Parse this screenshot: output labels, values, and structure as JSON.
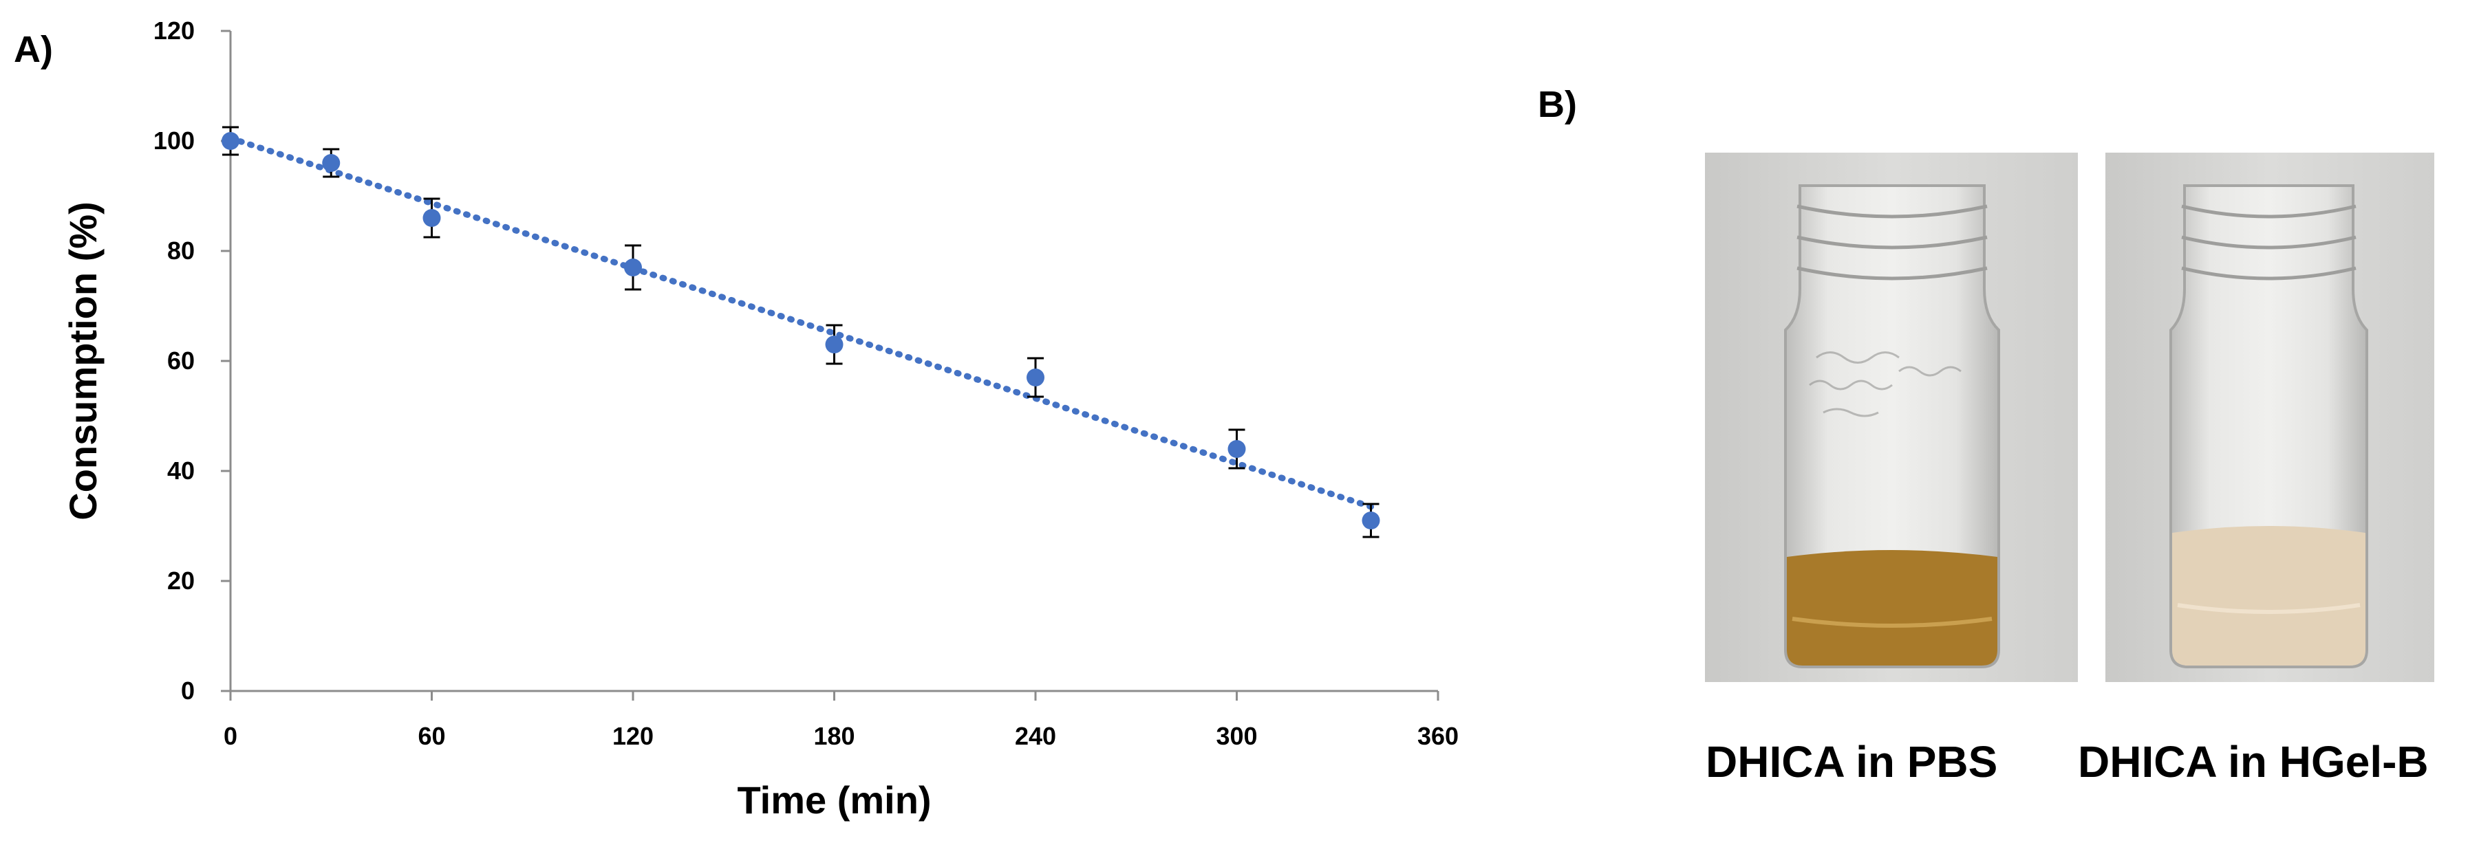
{
  "panel_a_label": "A)",
  "panel_b_label": "B)",
  "chart_data": {
    "type": "scatter",
    "title": "",
    "xlabel": "Time (min)",
    "ylabel": "Consumption (%)",
    "xlim": [
      0,
      360
    ],
    "ylim": [
      0,
      120
    ],
    "xticks": [
      0,
      60,
      120,
      180,
      240,
      300,
      360
    ],
    "yticks": [
      0,
      20,
      40,
      60,
      80,
      100,
      120
    ],
    "grid": false,
    "marker_color": "#4472C4",
    "trendline": {
      "style": "dotted",
      "x": [
        0,
        340
      ],
      "y": [
        100.5,
        33.5
      ]
    },
    "series": [
      {
        "x": [
          0,
          30,
          60,
          120,
          180,
          240,
          300,
          340
        ],
        "y": [
          100,
          96,
          86,
          77,
          63,
          57,
          44,
          31
        ],
        "error": [
          2.5,
          2.5,
          3.5,
          4,
          3.5,
          3.5,
          3.5,
          3
        ]
      }
    ]
  },
  "panel_b": {
    "vials": [
      {
        "caption": "DHICA in PBS",
        "liquid_color": "#a87a2a"
      },
      {
        "caption": "DHICA in HGel-B",
        "liquid_color": "#e3d2b8"
      }
    ]
  }
}
